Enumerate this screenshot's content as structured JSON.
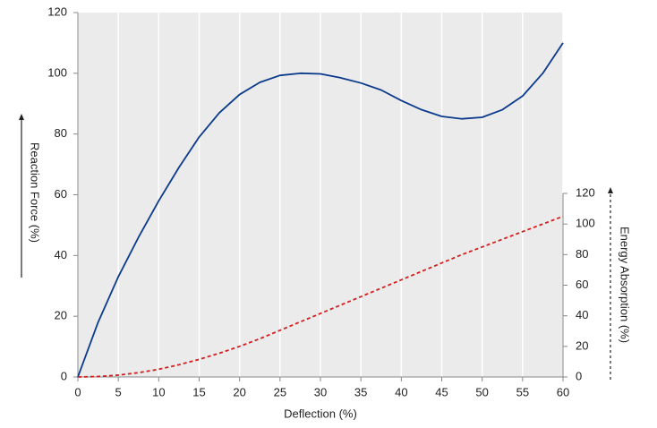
{
  "chart_data": {
    "type": "line",
    "x_label": "Deflection (%)",
    "y_label": "Reaction Force (%)",
    "y2_label": "Energy Absorption (%)",
    "x": [
      0,
      2.5,
      5,
      7.5,
      10,
      12.5,
      15,
      17.5,
      20,
      22.5,
      25,
      27.5,
      30,
      32.5,
      35,
      37.5,
      40,
      42.5,
      45,
      47.5,
      50,
      52.5,
      55,
      57.5,
      60
    ],
    "series": [
      {
        "color": "#0a3a8c",
        "dash": false,
        "values": [
          0,
          18,
          33,
          46,
          58,
          69,
          79,
          87,
          93,
          97,
          99.3,
          100,
          99.8,
          98.5,
          96.8,
          94.5,
          91,
          88,
          85.8,
          85,
          85.5,
          88,
          92.5,
          100,
          110
        ]
      },
      {
        "color": "#d21f1f",
        "dash": true,
        "axis": "y2",
        "values": [
          0,
          0.3,
          1.2,
          2.8,
          5,
          8,
          11.5,
          15.5,
          20,
          25,
          30.5,
          36,
          41.5,
          47,
          52.5,
          58,
          63.5,
          69,
          74.5,
          80,
          85,
          90,
          95,
          100,
          105
        ]
      }
    ],
    "xlim": [
      0,
      60
    ],
    "xticks": [
      0,
      5,
      10,
      15,
      20,
      25,
      30,
      35,
      40,
      45,
      50,
      55,
      60
    ],
    "ylim": [
      0,
      120
    ],
    "yticks": [
      0,
      20,
      40,
      60,
      80,
      100,
      120
    ],
    "y2lim": [
      0,
      120
    ],
    "y2ticks": [
      0,
      20,
      40,
      60,
      80,
      100,
      120
    ],
    "grid": true
  }
}
